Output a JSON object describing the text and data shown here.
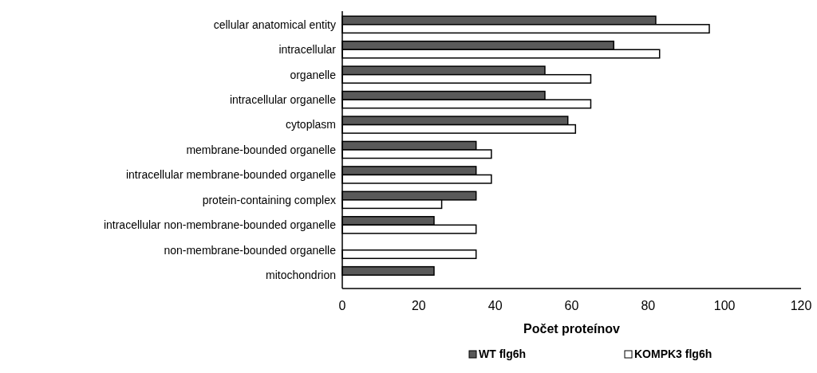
{
  "chart_data": {
    "type": "bar",
    "orientation": "horizontal",
    "xlabel": "Počet proteínov",
    "categories": [
      "cellular anatomical entity",
      "intracellular",
      "organelle",
      "intracellular organelle",
      "cytoplasm",
      "membrane-bounded organelle",
      "intracellular membrane-bounded organelle",
      "protein-containing complex",
      "intracellular non-membrane-bounded organelle",
      "non-membrane-bounded organelle",
      "mitochondrion"
    ],
    "series": [
      {
        "name": "WT flg6h",
        "color": "#595959",
        "values": [
          82,
          71,
          53,
          53,
          59,
          35,
          35,
          35,
          24,
          null,
          24
        ]
      },
      {
        "name": "KOMPK3 flg6h",
        "color": "#ffffff",
        "values": [
          96,
          83,
          65,
          65,
          61,
          39,
          39,
          26,
          35,
          35,
          null
        ]
      }
    ],
    "xlim": [
      0,
      120
    ],
    "xticks": [
      0,
      20,
      40,
      60,
      80,
      100,
      120
    ],
    "grid": false,
    "legend": "bottom"
  }
}
